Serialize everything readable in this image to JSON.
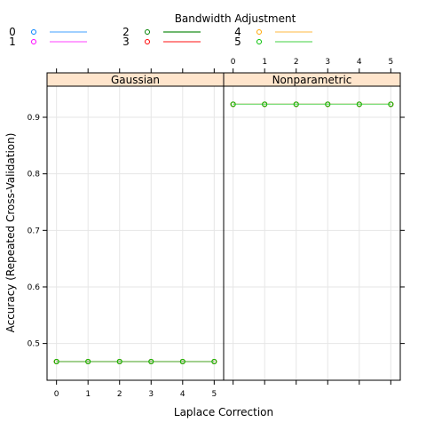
{
  "chart_data": {
    "type": "line",
    "legend": {
      "title": "Bandwidth Adjustment",
      "placement": "top",
      "entries": [
        {
          "label": "0",
          "point_color": "#0080ff",
          "line_color": "#80c0ff"
        },
        {
          "label": "1",
          "point_color": "#ff00ff",
          "line_color": "#ff80ff"
        },
        {
          "label": "2",
          "point_color": "#008000",
          "line_color": "#40a040"
        },
        {
          "label": "3",
          "point_color": "#ff0000",
          "line_color": "#ff6060"
        },
        {
          "label": "4",
          "point_color": "#ffa500",
          "line_color": "#ffd080"
        },
        {
          "label": "5",
          "point_color": "#00c000",
          "line_color": "#80e080"
        }
      ]
    },
    "xlabel": "Laplace Correction",
    "ylabel": "Accuracy (Repeated Cross-Validation)",
    "x_ticks": [
      "0",
      "1",
      "2",
      "3",
      "4",
      "5"
    ],
    "y_ticks": [
      "0.5",
      "0.6",
      "0.7",
      "0.8",
      "0.9"
    ],
    "xlim": [
      -0.3,
      5.3
    ],
    "ylim": [
      0.435,
      0.955
    ],
    "grid": true,
    "panels": [
      {
        "title": "Gaussian",
        "x": [
          0,
          1,
          2,
          3,
          4,
          5
        ],
        "series": [
          {
            "name": "0",
            "values": [
              0.468,
              0.468,
              0.468,
              0.468,
              0.468,
              0.468
            ]
          },
          {
            "name": "1",
            "values": [
              0.468,
              0.468,
              0.468,
              0.468,
              0.468,
              0.468
            ]
          },
          {
            "name": "2",
            "values": [
              0.468,
              0.468,
              0.468,
              0.468,
              0.468,
              0.468
            ]
          },
          {
            "name": "3",
            "values": [
              0.468,
              0.468,
              0.468,
              0.468,
              0.468,
              0.468
            ]
          },
          {
            "name": "4",
            "values": [
              0.468,
              0.468,
              0.468,
              0.468,
              0.468,
              0.468
            ]
          },
          {
            "name": "5",
            "values": [
              0.468,
              0.468,
              0.468,
              0.468,
              0.468,
              0.468
            ]
          }
        ]
      },
      {
        "title": "Nonparametric",
        "x": [
          0,
          1,
          2,
          3,
          4,
          5
        ],
        "series": [
          {
            "name": "0",
            "values": [
              0.923,
              0.923,
              0.923,
              0.923,
              0.923,
              0.923
            ]
          },
          {
            "name": "1",
            "values": [
              0.923,
              0.923,
              0.923,
              0.923,
              0.923,
              0.923
            ]
          },
          {
            "name": "2",
            "values": [
              0.923,
              0.923,
              0.923,
              0.923,
              0.923,
              0.923
            ]
          },
          {
            "name": "3",
            "values": [
              0.923,
              0.923,
              0.923,
              0.923,
              0.923,
              0.923
            ]
          },
          {
            "name": "4",
            "values": [
              0.923,
              0.923,
              0.923,
              0.923,
              0.923,
              0.923
            ]
          },
          {
            "name": "5",
            "values": [
              0.923,
              0.923,
              0.923,
              0.923,
              0.923,
              0.923
            ]
          }
        ]
      }
    ],
    "colors": {
      "strip_background": "#ffe5cc",
      "grid": "#e6e6e6"
    }
  }
}
